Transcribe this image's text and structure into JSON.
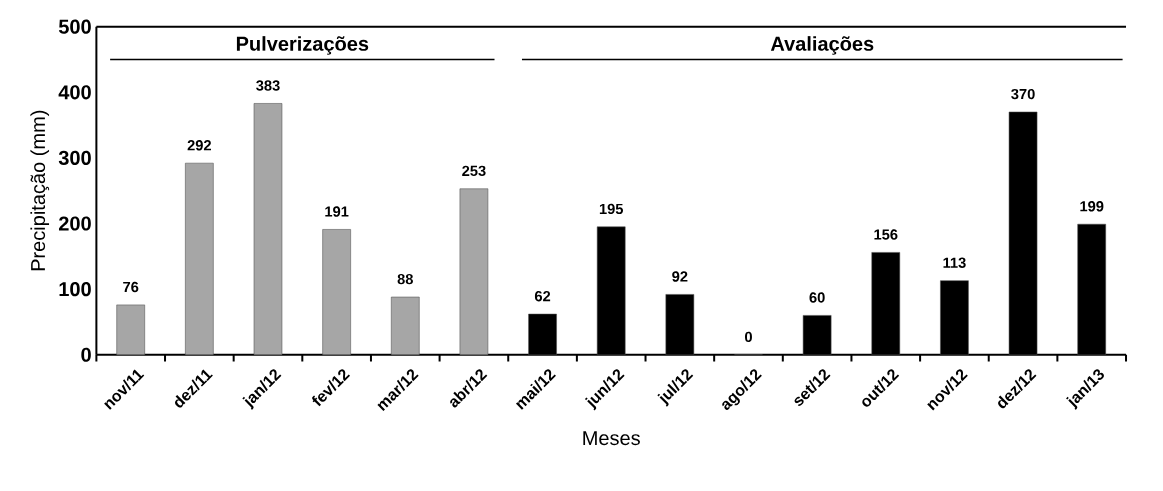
{
  "chart_data": {
    "type": "bar",
    "xlabel": "Meses",
    "ylabel": "Precipitação (mm)",
    "categories": [
      "nov/11",
      "dez/11",
      "jan/12",
      "fev/12",
      "mar/12",
      "abr/12",
      "mai/12",
      "jun/12",
      "jul/12",
      "ago/12",
      "set/12",
      "out/12",
      "nov/12",
      "dez/12",
      "jan/13"
    ],
    "values": [
      76,
      292,
      383,
      191,
      88,
      253,
      62,
      195,
      92,
      0,
      60,
      156,
      113,
      370,
      199
    ],
    "colors": [
      "#a6a6a6",
      "#a6a6a6",
      "#a6a6a6",
      "#a6a6a6",
      "#a6a6a6",
      "#a6a6a6",
      "#000000",
      "#000000",
      "#000000",
      "#000000",
      "#000000",
      "#000000",
      "#000000",
      "#000000",
      "#000000"
    ],
    "ylim": [
      0,
      500
    ],
    "yticks": [
      0,
      100,
      200,
      300,
      400,
      500
    ],
    "data_labels": true,
    "grid": false,
    "annotations": [
      "Pulverizações",
      "Avaliações"
    ]
  }
}
